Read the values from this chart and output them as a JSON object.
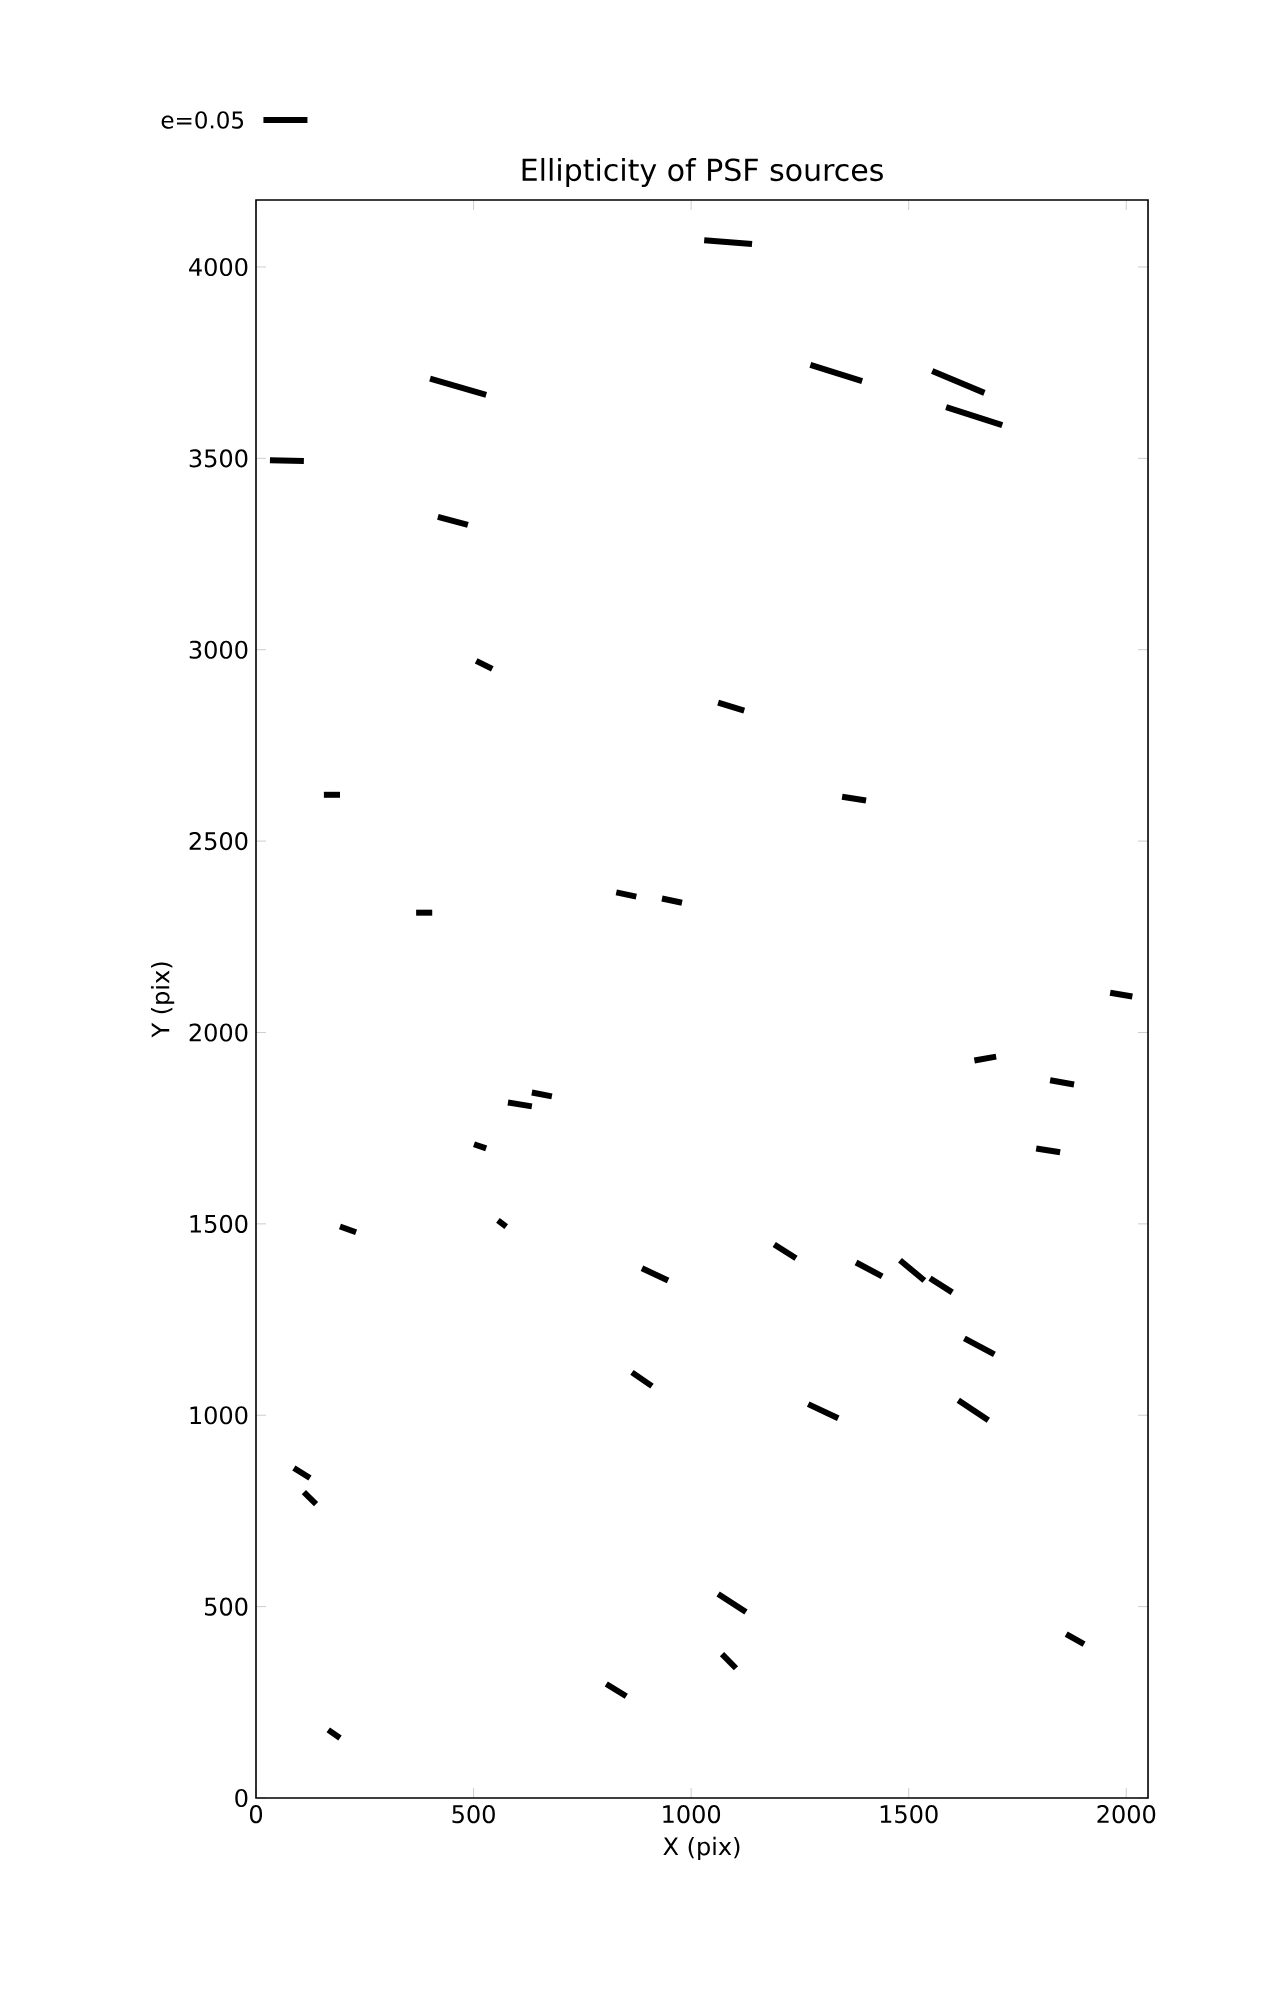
{
  "chart_data": {
    "type": "line",
    "title": "Ellipticity of PSF sources",
    "xlabel": "X (pix)",
    "ylabel": "Y (pix)",
    "annotations": [
      "e=0.05"
    ],
    "xlim": [
      0,
      2050
    ],
    "ylim": [
      0,
      4175
    ],
    "xticks": [
      0,
      500,
      1000,
      1500,
      2000
    ],
    "yticks": [
      0,
      500,
      1000,
      1500,
      2000,
      2500,
      3000,
      3500,
      4000
    ],
    "marker": "none",
    "line_style": "solid",
    "series": [
      {
        "color": "#000000",
        "x": [
          1030,
          1140
        ],
        "values": [
          4070,
          4060
        ]
      },
      {
        "color": "#000000",
        "x": [
          1274,
          1393
        ],
        "values": [
          3744,
          3702
        ]
      },
      {
        "color": "#000000",
        "x": [
          1554,
          1674
        ],
        "values": [
          3728,
          3671
        ]
      },
      {
        "color": "#000000",
        "x": [
          1586,
          1715
        ],
        "values": [
          3634,
          3587
        ]
      },
      {
        "color": "#000000",
        "x": [
          400,
          529
        ],
        "values": [
          3708,
          3666
        ]
      },
      {
        "color": "#000000",
        "x": [
          32,
          110
        ],
        "values": [
          3495,
          3493
        ]
      },
      {
        "color": "#000000",
        "x": [
          418,
          487
        ],
        "values": [
          3347,
          3326
        ]
      },
      {
        "color": "#000000",
        "x": [
          506,
          543
        ],
        "values": [
          2971,
          2950
        ]
      },
      {
        "color": "#000000",
        "x": [
          1062,
          1122
        ],
        "values": [
          2862,
          2841
        ]
      },
      {
        "color": "#000000",
        "x": [
          156,
          193
        ],
        "values": [
          2621,
          2621
        ]
      },
      {
        "color": "#000000",
        "x": [
          1347,
          1402
        ],
        "values": [
          2616,
          2606
        ]
      },
      {
        "color": "#000000",
        "x": [
          368,
          405
        ],
        "values": [
          2313,
          2313
        ]
      },
      {
        "color": "#000000",
        "x": [
          828,
          874
        ],
        "values": [
          2366,
          2355
        ]
      },
      {
        "color": "#000000",
        "x": [
          933,
          979
        ],
        "values": [
          2350,
          2339
        ]
      },
      {
        "color": "#000000",
        "x": [
          1963,
          2014
        ],
        "values": [
          2104,
          2094
        ]
      },
      {
        "color": "#000000",
        "x": [
          1651,
          1701
        ],
        "values": [
          1927,
          1937
        ]
      },
      {
        "color": "#000000",
        "x": [
          1825,
          1880
        ],
        "values": [
          1875,
          1864
        ]
      },
      {
        "color": "#000000",
        "x": [
          1793,
          1848
        ],
        "values": [
          1697,
          1687
        ]
      },
      {
        "color": "#000000",
        "x": [
          579,
          634
        ],
        "values": [
          1817,
          1807
        ]
      },
      {
        "color": "#000000",
        "x": [
          634,
          680
        ],
        "values": [
          1843,
          1833
        ]
      },
      {
        "color": "#000000",
        "x": [
          501,
          529
        ],
        "values": [
          1708,
          1697
        ]
      },
      {
        "color": "#000000",
        "x": [
          193,
          230
        ],
        "values": [
          1493,
          1478
        ]
      },
      {
        "color": "#000000",
        "x": [
          556,
          575
        ],
        "values": [
          1509,
          1493
        ]
      },
      {
        "color": "#000000",
        "x": [
          887,
          947
        ],
        "values": [
          1384,
          1352
        ]
      },
      {
        "color": "#000000",
        "x": [
          1191,
          1241
        ],
        "values": [
          1446,
          1410
        ]
      },
      {
        "color": "#000000",
        "x": [
          1379,
          1439
        ],
        "values": [
          1399,
          1363
        ]
      },
      {
        "color": "#000000",
        "x": [
          1480,
          1536
        ],
        "values": [
          1405,
          1352
        ]
      },
      {
        "color": "#000000",
        "x": [
          1549,
          1600
        ],
        "values": [
          1358,
          1321
        ]
      },
      {
        "color": "#000000",
        "x": [
          1628,
          1697
        ],
        "values": [
          1201,
          1159
        ]
      },
      {
        "color": "#000000",
        "x": [
          864,
          910
        ],
        "values": [
          1112,
          1076
        ]
      },
      {
        "color": "#000000",
        "x": [
          1269,
          1338
        ],
        "values": [
          1029,
          992
        ]
      },
      {
        "color": "#000000",
        "x": [
          1614,
          1683
        ],
        "values": [
          1039,
          987
        ]
      },
      {
        "color": "#000000",
        "x": [
          87,
          124
        ],
        "values": [
          862,
          836
        ]
      },
      {
        "color": "#000000",
        "x": [
          110,
          138
        ],
        "values": [
          799,
          768
        ]
      },
      {
        "color": "#000000",
        "x": [
          1062,
          1126
        ],
        "values": [
          533,
          486
        ]
      },
      {
        "color": "#000000",
        "x": [
          1071,
          1103
        ],
        "values": [
          376,
          339
        ]
      },
      {
        "color": "#000000",
        "x": [
          805,
          851
        ],
        "values": [
          298,
          266
        ]
      },
      {
        "color": "#000000",
        "x": [
          1862,
          1903
        ],
        "values": [
          428,
          402
        ]
      },
      {
        "color": "#000000",
        "x": [
          166,
          193
        ],
        "values": [
          178,
          157
        ]
      }
    ]
  }
}
